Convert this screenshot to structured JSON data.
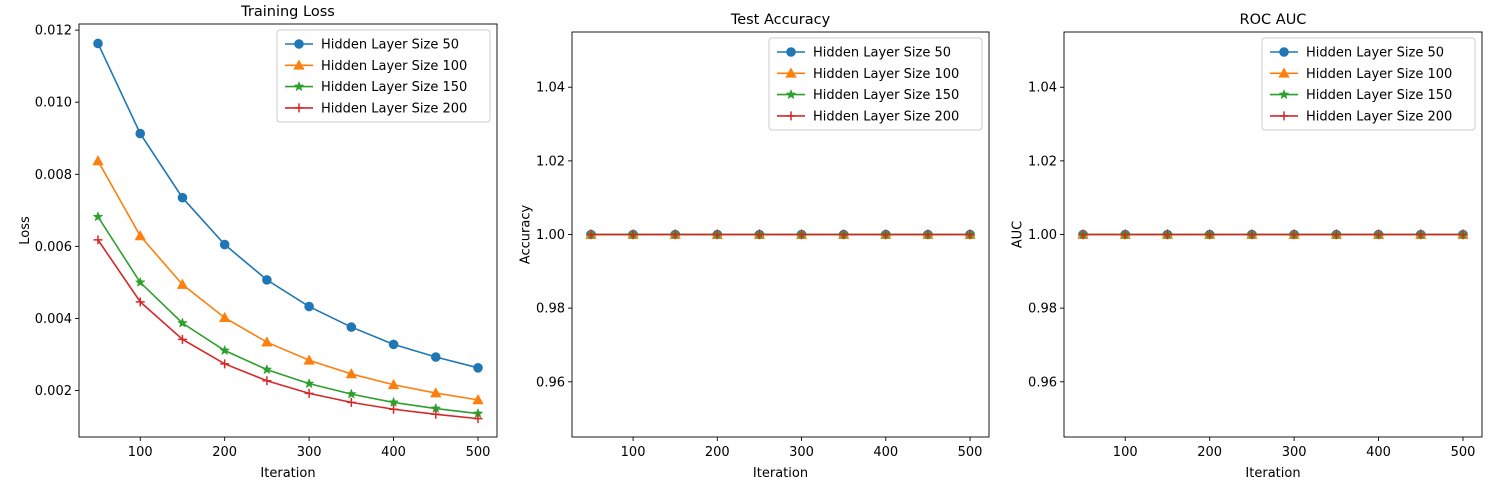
{
  "chart_data": [
    {
      "type": "line",
      "title": "Training Loss",
      "xlabel": "Iteration",
      "ylabel": "Loss",
      "x": [
        50,
        100,
        150,
        200,
        250,
        300,
        350,
        400,
        450,
        500
      ],
      "xlim": [
        27.5,
        522.5
      ],
      "xticks": [
        100,
        200,
        300,
        400,
        500
      ],
      "xtick_labels": [
        "100",
        "200",
        "300",
        "400",
        "500"
      ],
      "ylim": [
        0.00071,
        0.01217
      ],
      "yticks": [
        0.002,
        0.004,
        0.006,
        0.008,
        0.01,
        0.012
      ],
      "ytick_labels": [
        "0.002",
        "0.004",
        "0.006",
        "0.008",
        "0.010",
        "0.012"
      ],
      "grid": false,
      "legend_position": "top-right",
      "series": [
        {
          "name": "Hidden Layer Size 50",
          "color": "#1f77b4",
          "marker": "circle",
          "values": [
            0.01163,
            0.00913,
            0.00735,
            0.00605,
            0.00507,
            0.00433,
            0.00376,
            0.00328,
            0.00293,
            0.00263
          ]
        },
        {
          "name": "Hidden Layer Size 100",
          "color": "#ff7f0e",
          "marker": "triangle-up",
          "values": [
            0.00837,
            0.00629,
            0.00494,
            0.00402,
            0.00334,
            0.00284,
            0.00246,
            0.00216,
            0.00193,
            0.00174
          ]
        },
        {
          "name": "Hidden Layer Size 150",
          "color": "#2ca02c",
          "marker": "star",
          "values": [
            0.00682,
            0.005,
            0.00387,
            0.00311,
            0.00258,
            0.00219,
            0.0019,
            0.00167,
            0.0015,
            0.00136
          ]
        },
        {
          "name": "Hidden Layer Size 200",
          "color": "#d62728",
          "marker": "plus",
          "values": [
            0.00618,
            0.00446,
            0.00342,
            0.00274,
            0.00227,
            0.00192,
            0.00167,
            0.00148,
            0.00134,
            0.00122
          ]
        }
      ]
    },
    {
      "type": "line",
      "title": "Test Accuracy",
      "xlabel": "Iteration",
      "ylabel": "Accuracy",
      "x": [
        50,
        100,
        150,
        200,
        250,
        300,
        350,
        400,
        450,
        500
      ],
      "xlim": [
        27.5,
        522.5
      ],
      "xticks": [
        100,
        200,
        300,
        400,
        500
      ],
      "xtick_labels": [
        "100",
        "200",
        "300",
        "400",
        "500"
      ],
      "ylim": [
        0.945,
        1.055
      ],
      "yticks": [
        0.96,
        0.98,
        1.0,
        1.02,
        1.04
      ],
      "ytick_labels": [
        "0.96",
        "0.98",
        "1.00",
        "1.02",
        "1.04"
      ],
      "grid": false,
      "legend_position": "top-right",
      "series": [
        {
          "name": "Hidden Layer Size 50",
          "color": "#1f77b4",
          "marker": "circle",
          "values": [
            1,
            1,
            1,
            1,
            1,
            1,
            1,
            1,
            1,
            1
          ]
        },
        {
          "name": "Hidden Layer Size 100",
          "color": "#ff7f0e",
          "marker": "triangle-up",
          "values": [
            1,
            1,
            1,
            1,
            1,
            1,
            1,
            1,
            1,
            1
          ]
        },
        {
          "name": "Hidden Layer Size 150",
          "color": "#2ca02c",
          "marker": "star",
          "values": [
            1,
            1,
            1,
            1,
            1,
            1,
            1,
            1,
            1,
            1
          ]
        },
        {
          "name": "Hidden Layer Size 200",
          "color": "#d62728",
          "marker": "plus",
          "values": [
            1,
            1,
            1,
            1,
            1,
            1,
            1,
            1,
            1,
            1
          ]
        }
      ]
    },
    {
      "type": "line",
      "title": "ROC AUC",
      "xlabel": "Iteration",
      "ylabel": "AUC",
      "x": [
        50,
        100,
        150,
        200,
        250,
        300,
        350,
        400,
        450,
        500
      ],
      "xlim": [
        27.5,
        522.5
      ],
      "xticks": [
        100,
        200,
        300,
        400,
        500
      ],
      "xtick_labels": [
        "100",
        "200",
        "300",
        "400",
        "500"
      ],
      "ylim": [
        0.945,
        1.055
      ],
      "yticks": [
        0.96,
        0.98,
        1.0,
        1.02,
        1.04
      ],
      "ytick_labels": [
        "0.96",
        "0.98",
        "1.00",
        "1.02",
        "1.04"
      ],
      "grid": false,
      "legend_position": "top-right",
      "series": [
        {
          "name": "Hidden Layer Size 50",
          "color": "#1f77b4",
          "marker": "circle",
          "values": [
            1,
            1,
            1,
            1,
            1,
            1,
            1,
            1,
            1,
            1
          ]
        },
        {
          "name": "Hidden Layer Size 100",
          "color": "#ff7f0e",
          "marker": "triangle-up",
          "values": [
            1,
            1,
            1,
            1,
            1,
            1,
            1,
            1,
            1,
            1
          ]
        },
        {
          "name": "Hidden Layer Size 150",
          "color": "#2ca02c",
          "marker": "star",
          "values": [
            1,
            1,
            1,
            1,
            1,
            1,
            1,
            1,
            1,
            1
          ]
        },
        {
          "name": "Hidden Layer Size 200",
          "color": "#d62728",
          "marker": "plus",
          "values": [
            1,
            1,
            1,
            1,
            1,
            1,
            1,
            1,
            1,
            1
          ]
        }
      ]
    }
  ]
}
